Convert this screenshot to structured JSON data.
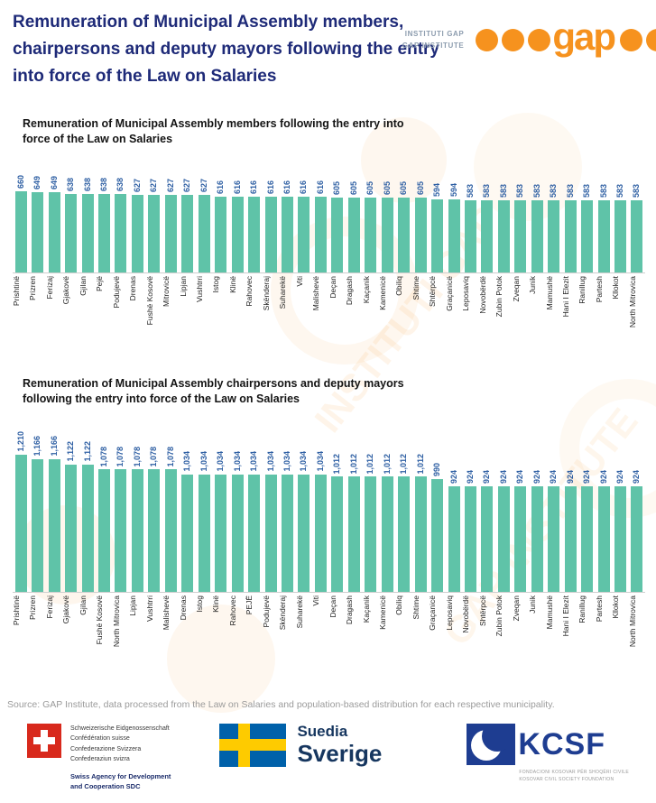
{
  "header": {
    "title": "Remuneration of Municipal Assembly members, chairpersons and deputy mayors following the entry into force of the Law on Salaries",
    "brand": {
      "line1": "INSTITUTI GAP",
      "line2": "GAP INSTITUTE",
      "wordmark": "gap",
      "orange": "#f6921e"
    }
  },
  "chart_data": [
    {
      "type": "bar",
      "title": "Remuneration of Municipal Assembly members following the entry into force of the Law on Salaries",
      "bar_color": "#5fc3a8",
      "value_label_color": "#2e5fa3",
      "ylim": [
        0,
        660
      ],
      "grid": false,
      "legend": "none",
      "categories": [
        "Prishtinë",
        "Prizren",
        "Ferizaj",
        "Gjakovë",
        "Gjilan",
        "Pejë",
        "Podujevë",
        "Drenas",
        "Fushë Kosovë",
        "Mitrovicë",
        "Lipjan",
        "Vushtrri",
        "Istog",
        "Klinë",
        "Rahovec",
        "Skënderaj",
        "Suharekë",
        "Viti",
        "Malishevë",
        "Deçan",
        "Dragash",
        "Kaçanik",
        "Kamenicë",
        "Obiliq",
        "Shtime",
        "Shtërpcë",
        "Graçanicë",
        "Leposaviq",
        "Novobërdë",
        "Zubin Potok",
        "Zveqan",
        "Junik",
        "Mamushë",
        "Hani I Elezit",
        "Ranillug",
        "Partesh",
        "Kllokot",
        "North Mitrovica"
      ],
      "values": [
        660,
        649,
        649,
        638,
        638,
        638,
        638,
        627,
        627,
        627,
        627,
        627,
        616,
        616,
        616,
        616,
        616,
        616,
        616,
        605,
        605,
        605,
        605,
        605,
        605,
        594,
        594,
        583,
        583,
        583,
        583,
        583,
        583,
        583,
        583,
        583,
        583,
        583
      ],
      "labels": [
        "660",
        "649",
        "649",
        "638",
        "638",
        "638",
        "638",
        "627",
        "627",
        "627",
        "627",
        "627",
        "616",
        "616",
        "616",
        "616",
        "616",
        "616",
        "616",
        "605",
        "605",
        "605",
        "605",
        "605",
        "605",
        "594",
        "594",
        "583",
        "583",
        "583",
        "583",
        "583",
        "583",
        "583",
        "583",
        "583",
        "583",
        "583"
      ]
    },
    {
      "type": "bar",
      "title": "Remuneration of Municipal Assembly chairpersons and deputy mayors following the entry into force of the Law on Salaries",
      "bar_color": "#5fc3a8",
      "value_label_color": "#2e5fa3",
      "ylim": [
        0,
        1210
      ],
      "grid": false,
      "legend": "none",
      "categories": [
        "Prishtinë",
        "Prizren",
        "Ferizaj",
        "Gjakovë",
        "Gjilan",
        "Fushë Kosovë",
        "North Mitrovica",
        "Lipjan",
        "Vushtrri",
        "Malishevë",
        "Drenas",
        "Istog",
        "Klinë",
        "Rahovec",
        "PEJË",
        "Podujevë",
        "Skënderaj",
        "Suharekë",
        "Viti",
        "Deçan",
        "Dragash",
        "Kaçanik",
        "Kamenicë",
        "Obiliq",
        "Shtime",
        "Graçanicë",
        "Leposaviq",
        "Novobërdë",
        "Shtërpcë",
        "Zubin Potok",
        "Zveqan",
        "Junik",
        "Mamushë",
        "Hani I Elezit",
        "Ranillug",
        "Partesh",
        "Kllokot",
        "North Mitrovica"
      ],
      "values": [
        1210,
        1166,
        1166,
        1122,
        1122,
        1078,
        1078,
        1078,
        1078,
        1078,
        1034,
        1034,
        1034,
        1034,
        1034,
        1034,
        1034,
        1034,
        1034,
        1012,
        1012,
        1012,
        1012,
        1012,
        1012,
        990,
        924,
        924,
        924,
        924,
        924,
        924,
        924,
        924,
        924,
        924,
        924,
        924
      ],
      "labels": [
        "1,210",
        "1,166",
        "1,166",
        "1,122",
        "1,122",
        "1,078",
        "1,078",
        "1,078",
        "1,078",
        "1,078",
        "1,034",
        "1,034",
        "1,034",
        "1,034",
        "1,034",
        "1,034",
        "1,034",
        "1,034",
        "1,034",
        "1,012",
        "1,012",
        "1,012",
        "1,012",
        "1,012",
        "1,012",
        "990",
        "924",
        "924",
        "924",
        "924",
        "924",
        "924",
        "924",
        "924",
        "924",
        "924",
        "924",
        "924"
      ]
    }
  ],
  "footer": {
    "source": "Source: GAP Institute, data processed from the Law on Salaries and population-based distribution for each respective municipality.",
    "swiss": {
      "lines": [
        "Schweizerische Eidgenossenschaft",
        "Confédération suisse",
        "Confederazione Svizzera",
        "Confederaziun svizra"
      ],
      "agency_lines": [
        "Swiss Agency for Development",
        "and Cooperation SDC"
      ]
    },
    "sweden": {
      "label1": "Suedia",
      "label2": "Sverige"
    },
    "kcsf": {
      "wordmark": "KCSF",
      "caption_lines": [
        "FONDACIONI KOSOVAR PËR SHOQËRI CIVILE",
        "KOSOVAR CIVIL SOCIETY FOUNDATION"
      ]
    }
  }
}
